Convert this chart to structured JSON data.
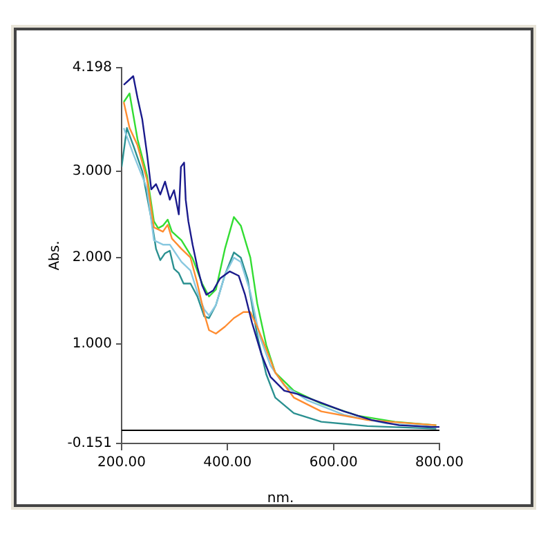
{
  "chart_data": {
    "type": "line",
    "xlabel": "nm.",
    "ylabel": "Abs.",
    "xlim": [
      200,
      800
    ],
    "ylim": [
      -0.151,
      4.198
    ],
    "xticks": [
      {
        "value": 200,
        "label": "200.00"
      },
      {
        "value": 400,
        "label": "400.00"
      },
      {
        "value": 600,
        "label": "600.00"
      },
      {
        "value": 800,
        "label": "800.00"
      }
    ],
    "yticks": [
      -0.151,
      {
        "value": 1,
        "label": "1.000"
      },
      {
        "value": 2,
        "label": "2.000"
      },
      {
        "value": 3,
        "label": "3.000"
      },
      4.198
    ],
    "grid": false,
    "legend": false,
    "marker": "none",
    "line_style": "solid",
    "ref_lines": [
      {
        "axis": "y",
        "value": 0,
        "color": "#000000"
      }
    ],
    "series": [
      {
        "color": "#1a1a8c",
        "x": [
          204,
          222,
          230,
          239,
          248,
          256,
          265,
          273,
          282,
          291,
          299,
          308,
          312,
          318,
          321,
          326,
          334,
          343,
          352,
          360,
          373,
          386,
          404,
          421,
          433,
          446,
          464,
          481,
          507,
          533,
          568,
          620,
          672,
          724,
          785,
          800
        ],
        "values": [
          4.0,
          4.1,
          3.85,
          3.6,
          3.2,
          2.79,
          2.85,
          2.73,
          2.88,
          2.67,
          2.78,
          2.5,
          3.05,
          3.1,
          2.67,
          2.42,
          2.15,
          1.89,
          1.68,
          1.57,
          1.62,
          1.76,
          1.84,
          1.79,
          1.57,
          1.25,
          0.88,
          0.62,
          0.46,
          0.42,
          0.34,
          0.22,
          0.12,
          0.06,
          0.04,
          0.04
        ]
      },
      {
        "color": "#ff8c30",
        "x": [
          204,
          215,
          230,
          248,
          261,
          278,
          287,
          295,
          313,
          330,
          343,
          356,
          365,
          378,
          395,
          412,
          430,
          443,
          456,
          473,
          490,
          525,
          577,
          664,
          794
        ],
        "values": [
          3.8,
          3.5,
          3.3,
          2.9,
          2.35,
          2.3,
          2.38,
          2.22,
          2.1,
          2.0,
          1.7,
          1.35,
          1.16,
          1.12,
          1.2,
          1.3,
          1.37,
          1.37,
          1.2,
          0.94,
          0.67,
          0.38,
          0.22,
          0.12,
          0.06
        ]
      },
      {
        "color": "#88c8e0",
        "x": [
          204,
          222,
          248,
          261,
          278,
          291,
          313,
          330,
          343,
          356,
          365,
          378,
          395,
          412,
          425,
          443,
          460,
          481,
          507,
          550,
          620,
          700,
          794
        ],
        "values": [
          3.5,
          3.2,
          2.8,
          2.2,
          2.15,
          2.15,
          1.95,
          1.85,
          1.6,
          1.4,
          1.33,
          1.45,
          1.8,
          2.0,
          1.95,
          1.6,
          1.1,
          0.75,
          0.52,
          0.35,
          0.18,
          0.08,
          0.04
        ]
      },
      {
        "color": "#2a9090",
        "x": [
          200,
          210,
          222,
          239,
          256,
          265,
          273,
          282,
          291,
          299,
          308,
          317,
          330,
          343,
          356,
          365,
          378,
          395,
          412,
          425,
          438,
          456,
          473,
          490,
          525,
          577,
          664,
          794
        ],
        "values": [
          3.05,
          3.5,
          3.3,
          3.0,
          2.45,
          2.1,
          1.97,
          2.05,
          2.08,
          1.87,
          1.82,
          1.7,
          1.7,
          1.55,
          1.32,
          1.3,
          1.45,
          1.8,
          2.06,
          2.0,
          1.75,
          1.1,
          0.65,
          0.38,
          0.2,
          0.1,
          0.05,
          0.02
        ]
      },
      {
        "color": "#33dd33",
        "x": [
          204,
          215,
          230,
          248,
          261,
          269,
          278,
          287,
          295,
          313,
          334,
          352,
          365,
          378,
          395,
          412,
          425,
          443,
          456,
          473,
          490,
          525,
          577,
          646,
          716,
          794
        ],
        "values": [
          3.8,
          3.9,
          3.37,
          2.95,
          2.42,
          2.34,
          2.37,
          2.44,
          2.3,
          2.2,
          1.99,
          1.7,
          1.55,
          1.63,
          2.1,
          2.47,
          2.37,
          2.0,
          1.47,
          0.99,
          0.67,
          0.46,
          0.31,
          0.17,
          0.1,
          0.06
        ]
      }
    ]
  }
}
